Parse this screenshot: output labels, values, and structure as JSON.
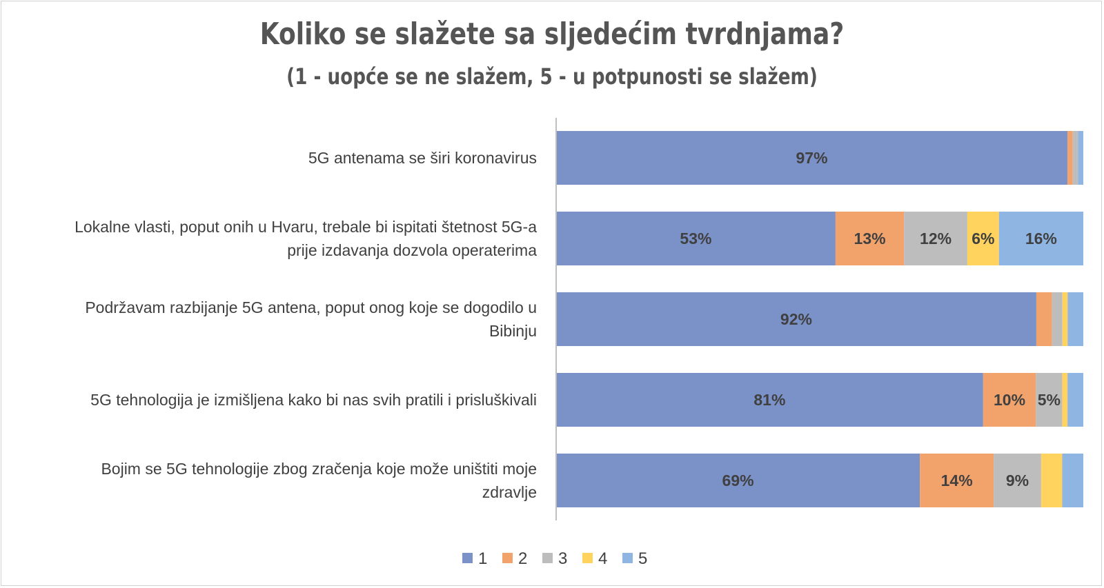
{
  "chart_data": {
    "type": "bar",
    "orientation": "horizontal",
    "stacked": true,
    "title": "Koliko se slažete sa sljedećim tvrdnjama?",
    "subtitle": "(1 - uopće se ne slažem, 5 - u potpunosti se slažem)",
    "categories": [
      [
        "5G antenama se širi koronavirus"
      ],
      [
        "Lokalne vlasti, poput onih u Hvaru, trebale bi ispitati štetnost 5G-a",
        "prije izdavanja dozvola operaterima"
      ],
      [
        "Podržavam razbijanje 5G antena, poput onog koje se dogodilo u",
        "Bibinju"
      ],
      [
        "5G tehnologija je izmišljena kako bi nas svih pratili i prisluškivali"
      ],
      [
        "Bojim se 5G tehnologije zbog zračenja koje može uništiti moje",
        "zdravlje"
      ]
    ],
    "series": [
      {
        "name": "1",
        "color": "#7b92c9",
        "values": [
          97,
          53,
          92,
          81,
          69
        ],
        "labels": [
          "97%",
          "53%",
          "92%",
          "81%",
          "69%"
        ]
      },
      {
        "name": "2",
        "color": "#f2a36c",
        "values": [
          1,
          13,
          3,
          10,
          14
        ],
        "labels": [
          "",
          "13%",
          "",
          "10%",
          "14%"
        ]
      },
      {
        "name": "3",
        "color": "#bdbdbd",
        "values": [
          1,
          12,
          2,
          5,
          9
        ],
        "labels": [
          "",
          "12%",
          "",
          "5%",
          "9%"
        ]
      },
      {
        "name": "4",
        "color": "#ffd35e",
        "values": [
          0,
          6,
          1,
          1,
          4
        ],
        "labels": [
          "",
          "6%",
          "",
          "",
          ""
        ]
      },
      {
        "name": "5",
        "color": "#8fb5e3",
        "values": [
          1,
          16,
          3,
          3,
          4
        ],
        "labels": [
          "",
          "16%",
          "",
          "",
          ""
        ]
      }
    ],
    "xlim": [
      0,
      100
    ],
    "grid": false,
    "legend": "bottom"
  }
}
